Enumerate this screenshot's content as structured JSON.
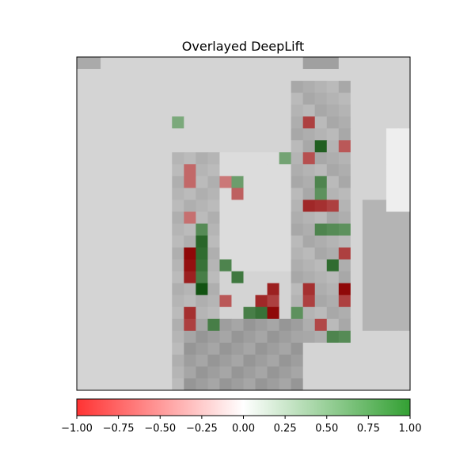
{
  "chart_data": {
    "type": "heatmap",
    "title": "Overlayed DeepLift",
    "grid_size": [
      28,
      28
    ],
    "x_axis": {
      "ticks_visible": false
    },
    "y_axis": {
      "ticks_visible": false
    },
    "colorbar": {
      "orientation": "horizontal",
      "placement": "bottom",
      "range": [
        -1.0,
        1.0
      ],
      "negative_color": "#ff3333",
      "zero_color": "#ffffff",
      "positive_color": "#33a033",
      "tick_values": [
        -1.0,
        -0.75,
        -0.5,
        -0.25,
        0.0,
        0.25,
        0.5,
        0.75,
        1.0
      ],
      "tick_labels": [
        "−1.00",
        "−0.75",
        "−0.50",
        "−0.25",
        "0.00",
        "0.25",
        "0.50",
        "0.75",
        "1.00"
      ]
    },
    "background_image": "grayscale image of a garment (trousers-like shape), darker gray on right edge",
    "highlights": [
      {
        "sign": "negative",
        "strength": 0.95,
        "row": 16,
        "col": 9
      },
      {
        "sign": "negative",
        "strength": 0.9,
        "row": 17,
        "col": 9
      },
      {
        "sign": "negative",
        "strength": 0.8,
        "row": 18,
        "col": 9
      },
      {
        "sign": "negative",
        "strength": 0.7,
        "row": 21,
        "col": 9
      },
      {
        "sign": "negative",
        "strength": 0.6,
        "row": 22,
        "col": 9
      },
      {
        "sign": "positive",
        "strength": 0.95,
        "row": 19,
        "col": 10
      },
      {
        "sign": "positive",
        "strength": 0.8,
        "row": 15,
        "col": 10
      },
      {
        "sign": "positive",
        "strength": 0.75,
        "row": 16,
        "col": 10
      },
      {
        "sign": "positive",
        "strength": 0.7,
        "row": 17,
        "col": 10
      },
      {
        "sign": "positive",
        "strength": 0.6,
        "row": 18,
        "col": 10
      },
      {
        "sign": "positive",
        "strength": 0.5,
        "row": 14,
        "col": 10
      },
      {
        "sign": "positive",
        "strength": 0.6,
        "row": 22,
        "col": 11
      },
      {
        "sign": "positive",
        "strength": 0.55,
        "row": 17,
        "col": 12
      },
      {
        "sign": "negative",
        "strength": 0.45,
        "row": 20,
        "col": 12
      },
      {
        "sign": "positive",
        "strength": 0.65,
        "row": 18,
        "col": 13
      },
      {
        "sign": "positive",
        "strength": 0.6,
        "row": 21,
        "col": 14
      },
      {
        "sign": "positive",
        "strength": 0.7,
        "row": 21,
        "col": 15
      },
      {
        "sign": "negative",
        "strength": 0.75,
        "row": 20,
        "col": 15
      },
      {
        "sign": "negative",
        "strength": 0.8,
        "row": 19,
        "col": 16
      },
      {
        "sign": "negative",
        "strength": 0.95,
        "row": 21,
        "col": 16
      },
      {
        "sign": "negative",
        "strength": 0.6,
        "row": 20,
        "col": 16
      },
      {
        "sign": "negative",
        "strength": 0.4,
        "row": 11,
        "col": 13
      },
      {
        "sign": "negative",
        "strength": 0.6,
        "row": 5,
        "col": 19
      },
      {
        "sign": "negative",
        "strength": 0.5,
        "row": 8,
        "col": 19
      },
      {
        "sign": "negative",
        "strength": 0.75,
        "row": 12,
        "col": 19
      },
      {
        "sign": "negative",
        "strength": 0.7,
        "row": 12,
        "col": 20
      },
      {
        "sign": "negative",
        "strength": 0.6,
        "row": 12,
        "col": 21
      },
      {
        "sign": "positive",
        "strength": 0.85,
        "row": 7,
        "col": 20
      },
      {
        "sign": "positive",
        "strength": 0.55,
        "row": 10,
        "col": 20
      },
      {
        "sign": "positive",
        "strength": 0.45,
        "row": 11,
        "col": 20
      },
      {
        "sign": "positive",
        "strength": 0.55,
        "row": 14,
        "col": 20
      },
      {
        "sign": "positive",
        "strength": 0.5,
        "row": 14,
        "col": 21
      },
      {
        "sign": "positive",
        "strength": 0.45,
        "row": 14,
        "col": 22
      },
      {
        "sign": "positive",
        "strength": 0.75,
        "row": 17,
        "col": 21
      },
      {
        "sign": "negative",
        "strength": 0.6,
        "row": 16,
        "col": 22
      },
      {
        "sign": "negative",
        "strength": 0.95,
        "row": 19,
        "col": 22
      },
      {
        "sign": "negative",
        "strength": 0.6,
        "row": 20,
        "col": 22
      },
      {
        "sign": "negative",
        "strength": 0.7,
        "row": 19,
        "col": 19
      },
      {
        "sign": "negative",
        "strength": 0.6,
        "row": 20,
        "col": 19
      },
      {
        "sign": "negative",
        "strength": 0.55,
        "row": 22,
        "col": 20
      },
      {
        "sign": "positive",
        "strength": 0.55,
        "row": 23,
        "col": 21
      },
      {
        "sign": "positive",
        "strength": 0.5,
        "row": 23,
        "col": 22
      },
      {
        "sign": "positive",
        "strength": 0.45,
        "row": 21,
        "col": 18
      },
      {
        "sign": "negative",
        "strength": 0.45,
        "row": 7,
        "col": 22
      },
      {
        "sign": "negative",
        "strength": 0.35,
        "row": 9,
        "col": 9
      },
      {
        "sign": "negative",
        "strength": 0.35,
        "row": 10,
        "col": 9
      },
      {
        "sign": "negative",
        "strength": 0.3,
        "row": 13,
        "col": 9
      },
      {
        "sign": "positive",
        "strength": 0.35,
        "row": 10,
        "col": 13
      },
      {
        "sign": "positive",
        "strength": 0.3,
        "row": 8,
        "col": 17
      },
      {
        "sign": "negative",
        "strength": 0.25,
        "row": 10,
        "col": 12
      },
      {
        "sign": "positive",
        "strength": 0.25,
        "row": 5,
        "col": 8
      }
    ]
  }
}
